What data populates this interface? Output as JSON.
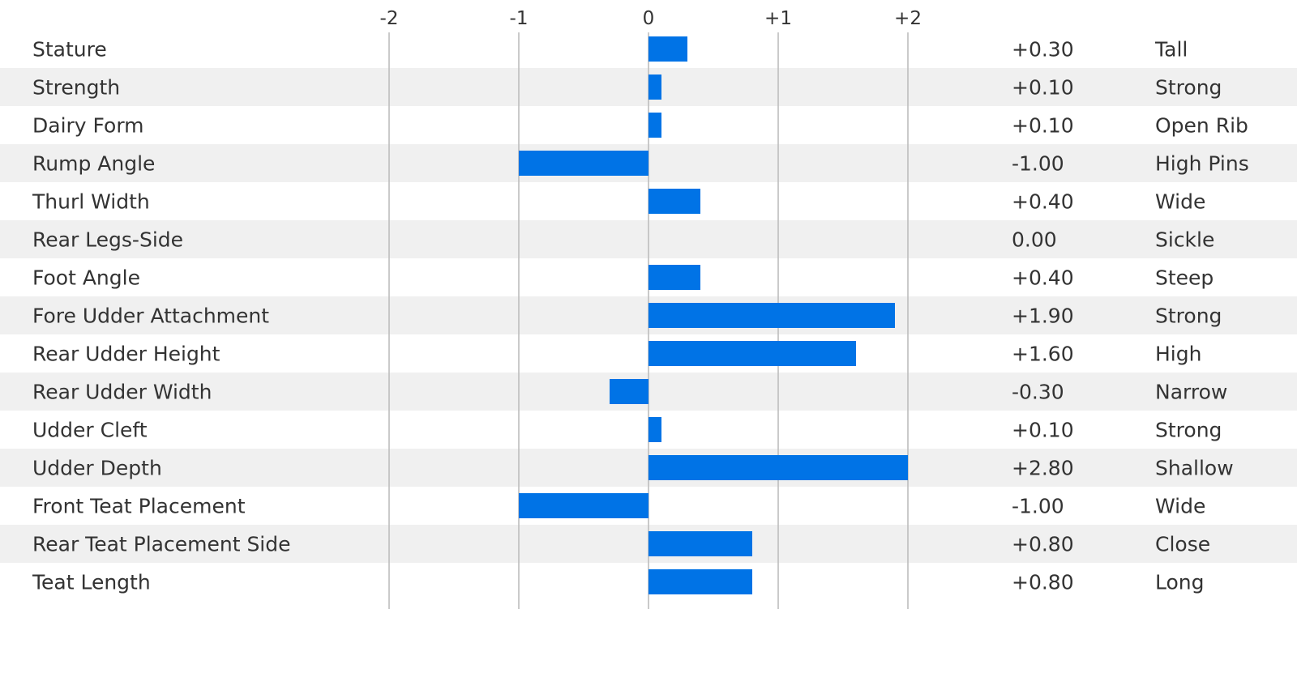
{
  "chart_data": {
    "type": "bar",
    "orientation": "horizontal",
    "xlim": [
      -2,
      2
    ],
    "x_ticks": [
      {
        "value": -2,
        "label": "-2"
      },
      {
        "value": -1,
        "label": "-1"
      },
      {
        "value": 0,
        "label": "0"
      },
      {
        "value": 1,
        "label": "+1"
      },
      {
        "value": 2,
        "label": "+2"
      }
    ],
    "grid": true,
    "bar_color": "#0073e6",
    "alt_row_color": "#f0f0f0",
    "rows": [
      {
        "trait": "Stature",
        "value": 0.3,
        "value_label": "+0.30",
        "description": "Tall"
      },
      {
        "trait": "Strength",
        "value": 0.1,
        "value_label": "+0.10",
        "description": "Strong"
      },
      {
        "trait": "Dairy Form",
        "value": 0.1,
        "value_label": "+0.10",
        "description": "Open Rib"
      },
      {
        "trait": "Rump Angle",
        "value": -1.0,
        "value_label": "-1.00",
        "description": "High Pins"
      },
      {
        "trait": "Thurl Width",
        "value": 0.4,
        "value_label": "+0.40",
        "description": "Wide"
      },
      {
        "trait": "Rear Legs-Side",
        "value": 0.0,
        "value_label": "0.00",
        "description": "Sickle"
      },
      {
        "trait": "Foot Angle",
        "value": 0.4,
        "value_label": "+0.40",
        "description": "Steep"
      },
      {
        "trait": "Fore Udder Attachment",
        "value": 1.9,
        "value_label": "+1.90",
        "description": "Strong"
      },
      {
        "trait": "Rear Udder Height",
        "value": 1.6,
        "value_label": "+1.60",
        "description": "High"
      },
      {
        "trait": "Rear Udder Width",
        "value": -0.3,
        "value_label": "-0.30",
        "description": "Narrow"
      },
      {
        "trait": "Udder Cleft",
        "value": 0.1,
        "value_label": "+0.10",
        "description": "Strong"
      },
      {
        "trait": "Udder Depth",
        "value": 2.8,
        "value_label": "+2.80",
        "description": "Shallow"
      },
      {
        "trait": "Front Teat Placement",
        "value": -1.0,
        "value_label": "-1.00",
        "description": "Wide"
      },
      {
        "trait": "Rear Teat Placement Side",
        "value": 0.8,
        "value_label": "+0.80",
        "description": "Close"
      },
      {
        "trait": "Teat Length",
        "value": 0.8,
        "value_label": "+0.80",
        "description": "Long"
      }
    ]
  }
}
